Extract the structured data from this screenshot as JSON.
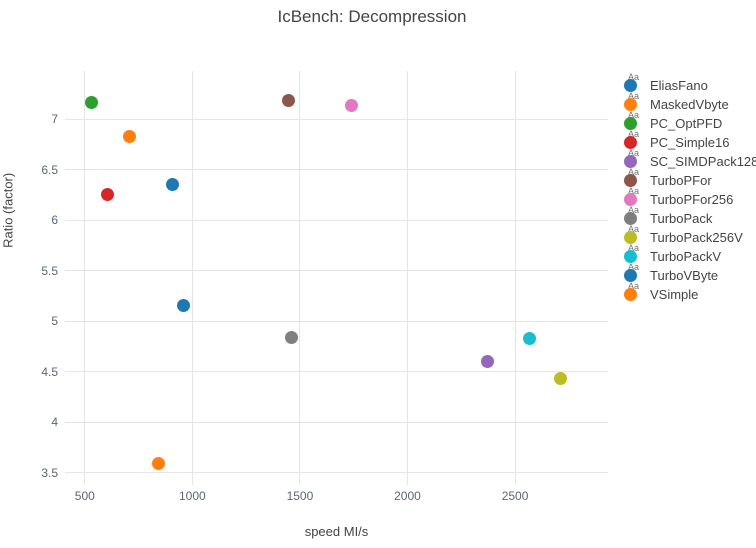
{
  "title": "IcBench: Decompression",
  "legend_preview_text": "Aa",
  "colors": {
    "background": "#ffffff",
    "grid": "#e5e5e5",
    "title_text": "#444444",
    "axis_title_text": "#444444",
    "tick_label_text": "#5a6673",
    "legend_label_text": "#444444",
    "legend_preview_text": "#737373"
  },
  "chart_data": {
    "type": "scatter",
    "title": "IcBench: Decompression",
    "xlabel": "speed MI/s",
    "ylabel": "Ratio (factor)",
    "xlim": [
      408,
      2932
    ],
    "ylim": [
      3.38,
      7.48
    ],
    "x_ticks": [
      500,
      1000,
      1500,
      2000,
      2500
    ],
    "y_ticks": [
      3.5,
      4,
      4.5,
      5,
      5.5,
      6,
      6.5,
      7
    ],
    "grid": true,
    "legend_position": "right",
    "marker_size_px": 13,
    "series": [
      {
        "name": "EliasFano",
        "color": "#1f77b4",
        "x": 910,
        "y": 6.36
      },
      {
        "name": "MaskedVbyte",
        "color": "#ff7f0e",
        "x": 706,
        "y": 6.83
      },
      {
        "name": "PC_OptPFD",
        "color": "#2ca02c",
        "x": 533,
        "y": 7.17
      },
      {
        "name": "PC_Simple16",
        "color": "#d62728",
        "x": 607,
        "y": 6.26
      },
      {
        "name": "SC_SIMDPack128",
        "color": "#9467bd",
        "x": 2370,
        "y": 4.6
      },
      {
        "name": "TurboPFor",
        "color": "#8c564b",
        "x": 1446,
        "y": 7.19
      },
      {
        "name": "TurboPFor256",
        "color": "#e377c2",
        "x": 1740,
        "y": 7.14
      },
      {
        "name": "TurboPack",
        "color": "#7f7f7f",
        "x": 1460,
        "y": 4.84
      },
      {
        "name": "TurboPack256V",
        "color": "#bcbd22",
        "x": 2713,
        "y": 4.43
      },
      {
        "name": "TurboPackV",
        "color": "#17becf",
        "x": 2566,
        "y": 4.83
      },
      {
        "name": "TurboVByte",
        "color": "#1f77b4",
        "x": 957,
        "y": 5.16
      },
      {
        "name": "VSimple",
        "color": "#ff7f0e",
        "x": 841,
        "y": 3.59
      }
    ]
  }
}
